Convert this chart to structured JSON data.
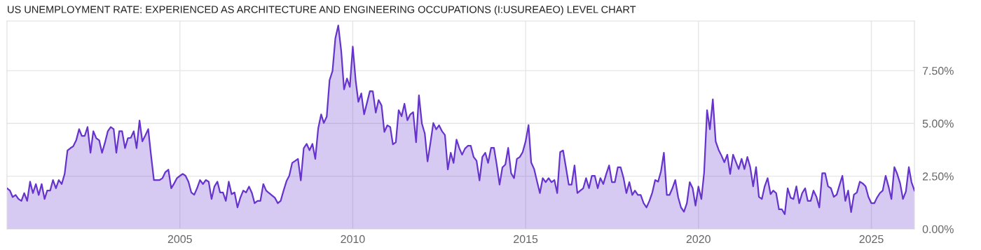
{
  "chart_data": {
    "type": "area",
    "title": "US UNEMPLOYMENT RATE: EXPERIENCED AS ARCHITECTURE AND ENGINEERING OCCUPATIONS (I:USUREAEO) LEVEL CHART",
    "x": [
      "2000-01",
      "2000-02",
      "2000-03",
      "2000-04",
      "2000-05",
      "2000-06",
      "2000-07",
      "2000-08",
      "2000-09",
      "2000-10",
      "2000-11",
      "2000-12",
      "2001-01",
      "2001-02",
      "2001-03",
      "2001-04",
      "2001-05",
      "2001-06",
      "2001-07",
      "2001-08",
      "2001-09",
      "2001-10",
      "2001-11",
      "2001-12",
      "2002-01",
      "2002-02",
      "2002-03",
      "2002-04",
      "2002-05",
      "2002-06",
      "2002-07",
      "2002-08",
      "2002-09",
      "2002-10",
      "2002-11",
      "2002-12",
      "2003-01",
      "2003-02",
      "2003-03",
      "2003-04",
      "2003-05",
      "2003-06",
      "2003-07",
      "2003-08",
      "2003-09",
      "2003-10",
      "2003-11",
      "2003-12",
      "2004-01",
      "2004-02",
      "2004-03",
      "2004-04",
      "2004-05",
      "2004-06",
      "2004-07",
      "2004-08",
      "2004-09",
      "2004-10",
      "2004-11",
      "2004-12",
      "2005-01",
      "2005-02",
      "2005-03",
      "2005-04",
      "2005-05",
      "2005-06",
      "2005-07",
      "2005-08",
      "2005-09",
      "2005-10",
      "2005-11",
      "2005-12",
      "2006-01",
      "2006-02",
      "2006-03",
      "2006-04",
      "2006-05",
      "2006-06",
      "2006-07",
      "2006-08",
      "2006-09",
      "2006-10",
      "2006-11",
      "2006-12",
      "2007-01",
      "2007-02",
      "2007-03",
      "2007-04",
      "2007-05",
      "2007-06",
      "2007-07",
      "2007-08",
      "2007-09",
      "2007-10",
      "2007-11",
      "2007-12",
      "2008-01",
      "2008-02",
      "2008-03",
      "2008-04",
      "2008-05",
      "2008-06",
      "2008-07",
      "2008-08",
      "2008-09",
      "2008-10",
      "2008-11",
      "2008-12",
      "2009-01",
      "2009-02",
      "2009-03",
      "2009-04",
      "2009-05",
      "2009-06",
      "2009-07",
      "2009-08",
      "2009-09",
      "2009-10",
      "2009-11",
      "2009-12",
      "2010-01",
      "2010-02",
      "2010-03",
      "2010-04",
      "2010-05",
      "2010-06",
      "2010-07",
      "2010-08",
      "2010-09",
      "2010-10",
      "2010-11",
      "2010-12",
      "2011-01",
      "2011-02",
      "2011-03",
      "2011-04",
      "2011-05",
      "2011-06",
      "2011-07",
      "2011-08",
      "2011-09",
      "2011-10",
      "2011-11",
      "2011-12",
      "2012-01",
      "2012-02",
      "2012-03",
      "2012-04",
      "2012-05",
      "2012-06",
      "2012-07",
      "2012-08",
      "2012-09",
      "2012-10",
      "2012-11",
      "2012-12",
      "2013-01",
      "2013-02",
      "2013-03",
      "2013-04",
      "2013-05",
      "2013-06",
      "2013-07",
      "2013-08",
      "2013-09",
      "2013-10",
      "2013-11",
      "2013-12",
      "2014-01",
      "2014-02",
      "2014-03",
      "2014-04",
      "2014-05",
      "2014-06",
      "2014-07",
      "2014-08",
      "2014-09",
      "2014-10",
      "2014-11",
      "2014-12",
      "2015-01",
      "2015-02",
      "2015-03",
      "2015-04",
      "2015-05",
      "2015-06",
      "2015-07",
      "2015-08",
      "2015-09",
      "2015-10",
      "2015-11",
      "2015-12",
      "2016-01",
      "2016-02",
      "2016-03",
      "2016-04",
      "2016-05",
      "2016-06",
      "2016-07",
      "2016-08",
      "2016-09",
      "2016-10",
      "2016-11",
      "2016-12",
      "2017-01",
      "2017-02",
      "2017-03",
      "2017-04",
      "2017-05",
      "2017-06",
      "2017-07",
      "2017-08",
      "2017-09",
      "2017-10",
      "2017-11",
      "2017-12",
      "2018-01",
      "2018-02",
      "2018-03",
      "2018-04",
      "2018-05",
      "2018-06",
      "2018-07",
      "2018-08",
      "2018-09",
      "2018-10",
      "2018-11",
      "2018-12",
      "2019-01",
      "2019-02",
      "2019-03",
      "2019-04",
      "2019-05",
      "2019-06",
      "2019-07",
      "2019-08",
      "2019-09",
      "2019-10",
      "2019-11",
      "2019-12",
      "2020-01",
      "2020-02",
      "2020-03",
      "2020-04",
      "2020-05",
      "2020-06",
      "2020-07",
      "2020-08",
      "2020-09",
      "2020-10",
      "2020-11",
      "2020-12",
      "2021-01",
      "2021-02",
      "2021-03",
      "2021-04",
      "2021-05",
      "2021-06",
      "2021-07",
      "2021-08",
      "2021-09",
      "2021-10",
      "2021-11",
      "2021-12",
      "2022-01",
      "2022-02",
      "2022-03",
      "2022-04",
      "2022-05",
      "2022-06",
      "2022-07",
      "2022-08",
      "2022-09",
      "2022-10",
      "2022-11",
      "2022-12",
      "2023-01",
      "2023-02",
      "2023-03",
      "2023-04",
      "2023-05",
      "2023-06",
      "2023-07",
      "2023-08",
      "2023-09",
      "2023-10",
      "2023-11",
      "2023-12",
      "2024-01",
      "2024-02",
      "2024-03",
      "2024-04",
      "2024-05",
      "2024-06",
      "2024-07",
      "2024-08",
      "2024-09",
      "2024-10",
      "2024-11",
      "2024-12",
      "2025-01",
      "2025-02",
      "2025-03",
      "2025-04",
      "2025-05",
      "2025-06",
      "2025-07",
      "2025-08",
      "2025-09",
      "2025-10",
      "2025-11",
      "2025-12",
      "2026-01",
      "2026-02",
      "2026-03",
      "2026-04"
    ],
    "series": [
      {
        "color": "#6633cc",
        "values": [
          1.93,
          1.82,
          1.51,
          1.61,
          1.42,
          1.33,
          1.7,
          1.33,
          2.24,
          1.7,
          2.13,
          1.61,
          2.13,
          1.42,
          1.82,
          1.82,
          2.32,
          1.93,
          2.32,
          2.13,
          2.61,
          3.72,
          3.83,
          3.92,
          4.2,
          4.73,
          4.41,
          4.41,
          4.83,
          3.61,
          4.63,
          4.3,
          4.2,
          3.61,
          4.09,
          4.63,
          4.83,
          4.73,
          3.61,
          4.63,
          4.63,
          3.83,
          4.3,
          4.32,
          4.63,
          3.83,
          5.14,
          4.15,
          4.43,
          4.73,
          3.52,
          2.32,
          2.32,
          2.32,
          2.41,
          2.7,
          2.81,
          1.93,
          2.16,
          2.41,
          2.52,
          2.61,
          2.52,
          2.24,
          1.73,
          1.62,
          1.93,
          2.32,
          2.13,
          2.32,
          2.24,
          1.42,
          2.02,
          2.24,
          1.73,
          1.73,
          1.33,
          2.24,
          1.65,
          1.73,
          1.02,
          1.48,
          1.82,
          1.73,
          2.01,
          1.7,
          1.22,
          1.33,
          1.33,
          2.13,
          1.82,
          1.7,
          1.59,
          1.48,
          1.22,
          1.33,
          1.82,
          2.27,
          2.52,
          3.13,
          3.22,
          3.32,
          2.3,
          3.83,
          4.03,
          3.73,
          4.03,
          3.32,
          4.77,
          5.43,
          5.02,
          5.32,
          7.05,
          7.48,
          9.03,
          9.64,
          8.43,
          6.61,
          7.13,
          6.73,
          8.64,
          7.02,
          6.02,
          6.42,
          5.43,
          5.99,
          6.53,
          6.52,
          5.51,
          6.11,
          5.85,
          4.6,
          4.91,
          4.83,
          4.01,
          4.11,
          5.63,
          5.34,
          5.93,
          5.15,
          5.43,
          5.53,
          4.11,
          6.33,
          5.0,
          4.52,
          3.2,
          4.09,
          5.02,
          4.72,
          4.91,
          4.63,
          4.45,
          2.82,
          3.61,
          3.13,
          4.23,
          3.81,
          3.52,
          3.81,
          3.94,
          3.94,
          3.41,
          3.23,
          2.3,
          3.41,
          3.61,
          3.13,
          3.84,
          3.84,
          3.07,
          2.1,
          2.92,
          3.05,
          3.84,
          2.64,
          2.41,
          3.32,
          3.41,
          3.64,
          4.15,
          4.92,
          3.15,
          2.84,
          2.27,
          1.7,
          2.41,
          2.22,
          2.41,
          2.22,
          2.32,
          1.7,
          3.64,
          3.72,
          2.95,
          2.1,
          2.1,
          3.01,
          1.7,
          1.82,
          1.93,
          2.41,
          1.93,
          2.52,
          2.52,
          1.93,
          2.41,
          2.13,
          2.59,
          3.01,
          2.22,
          2.22,
          2.92,
          2.92,
          2.41,
          1.7,
          2.22,
          1.61,
          1.82,
          1.61,
          1.61,
          1.22,
          1.02,
          1.33,
          1.73,
          2.32,
          2.24,
          2.73,
          3.61,
          1.61,
          1.61,
          1.93,
          2.32,
          1.5,
          1.02,
          0.82,
          1.22,
          2.22,
          1.93,
          1.11,
          2.01,
          1.42,
          2.67,
          5.63,
          4.72,
          6.14,
          4.15,
          3.75,
          3.47,
          3.16,
          3.52,
          2.61,
          3.52,
          3.16,
          2.84,
          3.32,
          2.84,
          3.41,
          2.93,
          2.02,
          2.93,
          1.52,
          1.42,
          2.02,
          2.41,
          1.65,
          1.82,
          1.7,
          0.93,
          0.93,
          0.7,
          1.93,
          1.48,
          1.42,
          2.02,
          1.22,
          1.7,
          1.93,
          1.33,
          1.33,
          1.82,
          1.52,
          1.02,
          2.64,
          2.64,
          2.02,
          1.93,
          1.52,
          1.63,
          2.1,
          2.52,
          1.33,
          1.82,
          0.8,
          1.63,
          1.73,
          2.24,
          2.16,
          2.02,
          1.52,
          1.22,
          1.22,
          1.48,
          1.7,
          1.82,
          2.52,
          2.02,
          1.42,
          2.93,
          2.61,
          2.16,
          1.42,
          1.78,
          2.93,
          2.22,
          1.82
        ]
      }
    ],
    "xlim": [
      "2000-01",
      "2026-04"
    ],
    "xticks": [
      "2005",
      "2010",
      "2015",
      "2020",
      "2025"
    ],
    "ylim": [
      0,
      9.85
    ],
    "yticks": [
      {
        "value": 0,
        "label": "0.00%"
      },
      {
        "value": 2.5,
        "label": "2.50%"
      },
      {
        "value": 5,
        "label": "5.00%"
      },
      {
        "value": 7.5,
        "label": "7.50%"
      }
    ],
    "grid": true
  }
}
